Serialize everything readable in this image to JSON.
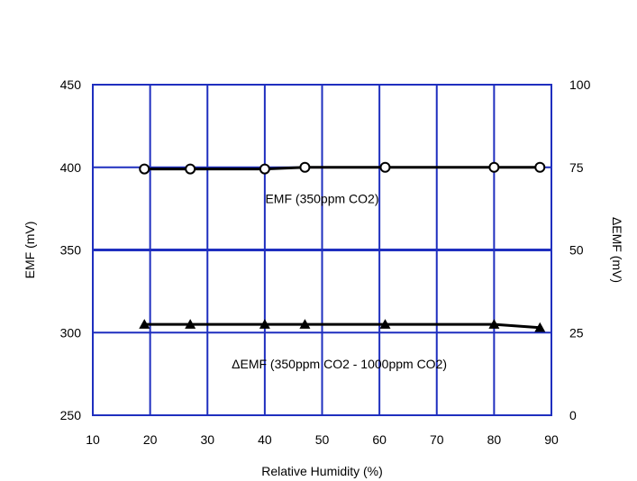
{
  "chart_data": {
    "type": "line",
    "xlabel": "Relative Humidity (%)",
    "ylabel": "EMF (mV)",
    "y2label": "ΔEMF (mV)",
    "xlim": [
      10,
      90
    ],
    "ylim": [
      250,
      450
    ],
    "y2lim": [
      0,
      100
    ],
    "x_ticks": [
      "10",
      "20",
      "30",
      "40",
      "50",
      "60",
      "70",
      "80",
      "90"
    ],
    "y_ticks": [
      "250",
      "300",
      "350",
      "400",
      "450"
    ],
    "y2_ticks": [
      "0",
      "25",
      "50",
      "75",
      "100"
    ],
    "grid": true,
    "colors": {
      "grid": "#1f2fbf",
      "series": "#000000"
    },
    "series": [
      {
        "axis": "left",
        "marker": "circle",
        "x": [
          19,
          27,
          40,
          47,
          61,
          80,
          88
        ],
        "y": [
          399,
          399,
          399,
          400,
          400,
          400,
          400
        ]
      },
      {
        "axis": "left",
        "marker": "triangle",
        "x": [
          19,
          27,
          40,
          47,
          61,
          80,
          88
        ],
        "y": [
          305,
          305,
          305,
          305,
          305,
          305,
          303
        ]
      }
    ],
    "annotations": [
      {
        "text": "EMF (350ppm CO2)",
        "x": 50,
        "y": 381
      },
      {
        "text": "ΔEMF (350ppm CO2 - 1000ppm CO2)",
        "x": 53,
        "y": 281
      }
    ]
  }
}
